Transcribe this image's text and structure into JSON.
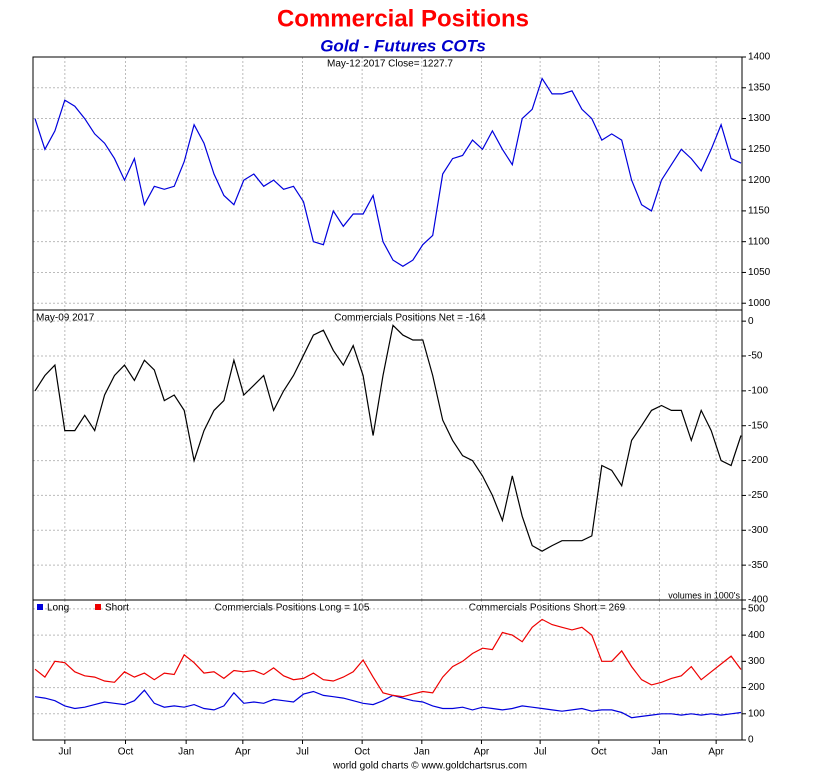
{
  "title": "Commercial Positions",
  "subtitle": "Gold - Futures COTs",
  "footer": "world gold charts © www.goldchartsrus.com",
  "chart_data": [
    {
      "type": "line",
      "annotation": "May-12  2017   Close= 1227.7",
      "color": "#0000dd",
      "x": [
        0,
        1,
        2,
        3,
        4,
        5,
        6,
        7,
        8,
        9,
        10,
        11,
        12,
        13,
        14,
        15,
        16,
        17,
        18,
        19,
        20,
        21,
        22,
        23,
        24,
        25,
        26,
        27,
        28,
        29,
        30,
        31,
        32,
        33,
        34,
        35,
        36,
        37,
        38,
        39,
        40,
        41,
        42,
        43,
        44,
        45,
        46,
        47,
        48,
        49,
        50,
        51,
        52,
        53,
        54,
        55,
        56,
        57,
        58,
        59,
        60,
        61,
        62,
        63,
        64,
        65,
        66,
        67,
        68,
        69,
        70,
        71
      ],
      "values": [
        1300,
        1250,
        1280,
        1330,
        1320,
        1300,
        1275,
        1260,
        1235,
        1200,
        1235,
        1160,
        1190,
        1185,
        1190,
        1230,
        1290,
        1260,
        1210,
        1175,
        1160,
        1200,
        1210,
        1190,
        1200,
        1185,
        1190,
        1165,
        1100,
        1095,
        1150,
        1125,
        1145,
        1145,
        1175,
        1100,
        1070,
        1060,
        1070,
        1095,
        1110,
        1210,
        1235,
        1240,
        1265,
        1250,
        1280,
        1250,
        1225,
        1300,
        1315,
        1365,
        1340,
        1340,
        1345,
        1315,
        1300,
        1265,
        1275,
        1265,
        1200,
        1160,
        1150,
        1200,
        1225,
        1250,
        1235,
        1215,
        1250,
        1290,
        1235,
        1227.7
      ],
      "xlim": [
        0,
        71
      ],
      "ylim": [
        989,
        1400
      ],
      "yticks": [
        1000,
        1050,
        1100,
        1150,
        1200,
        1250,
        1300,
        1350,
        1400
      ],
      "grid": true
    },
    {
      "type": "line",
      "date_label": "May-09  2017",
      "annotation": "Commercials Positions Net = -164",
      "note": "volumes in 1000's",
      "color": "#000000",
      "x": [
        0,
        1,
        2,
        3,
        4,
        5,
        6,
        7,
        8,
        9,
        10,
        11,
        12,
        13,
        14,
        15,
        16,
        17,
        18,
        19,
        20,
        21,
        22,
        23,
        24,
        25,
        26,
        27,
        28,
        29,
        30,
        31,
        32,
        33,
        34,
        35,
        36,
        37,
        38,
        39,
        40,
        41,
        42,
        43,
        44,
        45,
        46,
        47,
        48,
        49,
        50,
        51,
        52,
        53,
        54,
        55,
        56,
        57,
        58,
        59,
        60,
        61,
        62,
        63,
        64,
        65,
        66,
        67,
        68,
        69,
        70,
        71
      ],
      "values": [
        -100,
        -78,
        -63,
        -157,
        -157,
        -135,
        -157,
        -106,
        -78,
        -63,
        -85,
        -56,
        -70,
        -114,
        -106,
        -128,
        -200,
        -157,
        -128,
        -114,
        -56,
        -106,
        -92,
        -78,
        -128,
        -100,
        -78,
        -49,
        -20,
        -13,
        -42,
        -63,
        -35,
        -78,
        -164,
        -78,
        -6,
        -20,
        -27,
        -27,
        -78,
        -142,
        -171,
        -193,
        -200,
        -222,
        -250,
        -286,
        -222,
        -280,
        -322,
        -330,
        -322,
        -315,
        -315,
        -315,
        -308,
        -207,
        -214,
        -236,
        -171,
        -150,
        -128,
        -121,
        -128,
        -128,
        -171,
        -128,
        -157,
        -200,
        -207,
        -164
      ],
      "xlim": [
        0,
        71
      ],
      "ylim": [
        -400,
        16
      ],
      "yticks": [
        0,
        -50,
        -100,
        -150,
        -200,
        -250,
        -300,
        -350,
        -400
      ],
      "grid": true
    },
    {
      "type": "line",
      "annotations": [
        "Commercials Positions Long = 105",
        "Commercials Positions Short = 269"
      ],
      "x": [
        0,
        1,
        2,
        3,
        4,
        5,
        6,
        7,
        8,
        9,
        10,
        11,
        12,
        13,
        14,
        15,
        16,
        17,
        18,
        19,
        20,
        21,
        22,
        23,
        24,
        25,
        26,
        27,
        28,
        29,
        30,
        31,
        32,
        33,
        34,
        35,
        36,
        37,
        38,
        39,
        40,
        41,
        42,
        43,
        44,
        45,
        46,
        47,
        48,
        49,
        50,
        51,
        52,
        53,
        54,
        55,
        56,
        57,
        58,
        59,
        60,
        61,
        62,
        63,
        64,
        65,
        66,
        67,
        68,
        69,
        70,
        71
      ],
      "series": [
        {
          "name": "Long",
          "color": "#0000dd",
          "values": [
            165,
            160,
            150,
            130,
            120,
            125,
            135,
            145,
            140,
            135,
            150,
            190,
            140,
            125,
            130,
            125,
            135,
            120,
            115,
            130,
            180,
            140,
            145,
            140,
            155,
            150,
            145,
            175,
            185,
            170,
            165,
            160,
            150,
            140,
            135,
            150,
            170,
            160,
            150,
            145,
            130,
            120,
            120,
            125,
            115,
            125,
            120,
            115,
            120,
            130,
            125,
            120,
            115,
            110,
            115,
            120,
            110,
            115,
            115,
            105,
            85,
            90,
            95,
            100,
            100,
            95,
            100,
            95,
            100,
            95,
            100,
            105
          ]
        },
        {
          "name": "Short",
          "color": "#ee0000",
          "values": [
            270,
            240,
            300,
            295,
            260,
            245,
            240,
            225,
            220,
            260,
            240,
            255,
            230,
            255,
            250,
            325,
            295,
            255,
            260,
            235,
            265,
            260,
            265,
            250,
            275,
            245,
            230,
            235,
            255,
            230,
            225,
            240,
            260,
            305,
            240,
            180,
            170,
            165,
            175,
            185,
            180,
            240,
            280,
            300,
            330,
            350,
            345,
            410,
            400,
            375,
            430,
            460,
            440,
            430,
            420,
            430,
            400,
            300,
            300,
            340,
            280,
            230,
            210,
            220,
            235,
            245,
            280,
            230,
            260,
            290,
            320,
            269
          ]
        }
      ],
      "xlim": [
        0,
        71
      ],
      "ylim": [
        0,
        534
      ],
      "yticks": [
        0,
        100,
        200,
        300,
        400,
        500
      ],
      "xticks": [
        {
          "value": 3.0,
          "label": "Jul"
        },
        {
          "value": 9.1,
          "label": "Oct"
        },
        {
          "value": 15.2,
          "label": "Jan"
        },
        {
          "value": 20.9,
          "label": "Apr"
        },
        {
          "value": 26.9,
          "label": "Jul"
        },
        {
          "value": 32.9,
          "label": "Oct"
        },
        {
          "value": 38.9,
          "label": "Jan"
        },
        {
          "value": 44.9,
          "label": "Apr"
        },
        {
          "value": 50.8,
          "label": "Jul"
        },
        {
          "value": 56.7,
          "label": "Oct"
        },
        {
          "value": 62.8,
          "label": "Jan"
        },
        {
          "value": 68.5,
          "label": "Apr"
        }
      ],
      "grid": true,
      "legend": "top-left"
    }
  ]
}
